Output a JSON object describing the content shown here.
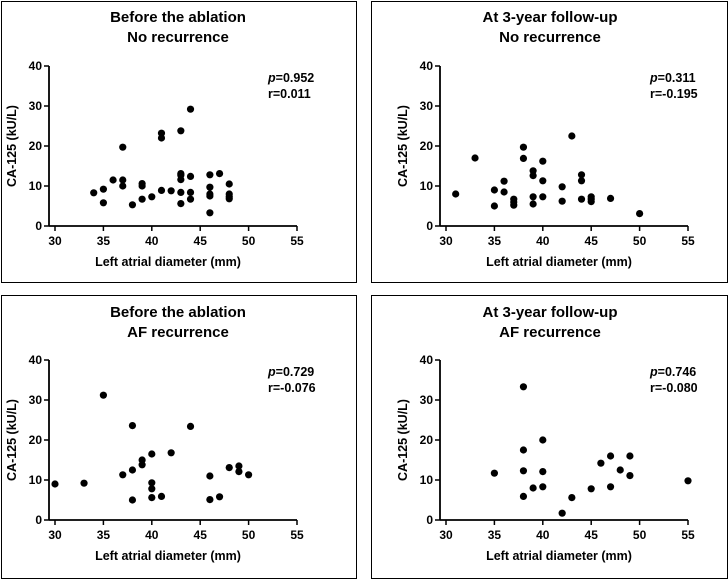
{
  "chart_data": [
    {
      "type": "scatter",
      "title": [
        "Before the ablation",
        "No recurrence"
      ],
      "xlabel": "Left atrial diameter (mm)",
      "ylabel": "CA-125 (kU/L)",
      "xlim": [
        30,
        55
      ],
      "ylim": [
        0,
        40
      ],
      "xticks": [
        "30",
        "35",
        "40",
        "45",
        "50",
        "55"
      ],
      "yticks": [
        "0",
        "10",
        "20",
        "30",
        "40"
      ],
      "stats": {
        "p_label": "p",
        "p_value": "=0.952",
        "r": "r=0.011"
      },
      "points": [
        [
          34,
          8.3
        ],
        [
          35,
          9.2
        ],
        [
          35,
          5.8
        ],
        [
          36,
          11.5
        ],
        [
          37,
          19.7
        ],
        [
          37,
          11.5
        ],
        [
          37,
          10
        ],
        [
          38,
          5.3
        ],
        [
          39,
          10.6
        ],
        [
          39,
          10
        ],
        [
          39,
          6.7
        ],
        [
          40,
          7.3
        ],
        [
          41,
          23.2
        ],
        [
          41,
          22
        ],
        [
          41,
          8.9
        ],
        [
          42,
          8.8
        ],
        [
          43,
          23.8
        ],
        [
          43,
          13.1
        ],
        [
          43,
          12.7
        ],
        [
          43,
          11.6
        ],
        [
          43,
          8.4
        ],
        [
          43,
          5.6
        ],
        [
          44,
          29.2
        ],
        [
          44,
          12.4
        ],
        [
          44,
          8.4
        ],
        [
          44,
          6.7
        ],
        [
          46,
          12.8
        ],
        [
          46,
          9.7
        ],
        [
          46,
          8
        ],
        [
          46,
          7.5
        ],
        [
          46,
          3.3
        ],
        [
          47,
          13.1
        ],
        [
          48,
          10.5
        ],
        [
          48,
          8
        ],
        [
          48,
          7.3
        ],
        [
          48,
          6.8
        ]
      ]
    },
    {
      "type": "scatter",
      "title": [
        "At 3-year follow-up",
        "No recurrence"
      ],
      "xlabel": "Left atrial diameter (mm)",
      "ylabel": "CA-125 (kU/L)",
      "xlim": [
        30,
        55
      ],
      "ylim": [
        0,
        40
      ],
      "xticks": [
        "30",
        "35",
        "40",
        "45",
        "50",
        "55"
      ],
      "yticks": [
        "0",
        "10",
        "20",
        "30",
        "40"
      ],
      "stats": {
        "p_label": "p",
        "p_value": "=0.311",
        "r": "r=-0.195"
      },
      "points": [
        [
          31,
          8
        ],
        [
          33,
          17
        ],
        [
          35,
          9
        ],
        [
          35,
          5
        ],
        [
          36,
          11.2
        ],
        [
          36,
          8.5
        ],
        [
          37,
          6.7
        ],
        [
          37,
          6
        ],
        [
          37,
          5.2
        ],
        [
          38,
          19.7
        ],
        [
          38,
          16.9
        ],
        [
          39,
          13.8
        ],
        [
          39,
          12.6
        ],
        [
          39,
          7.3
        ],
        [
          39,
          5.5
        ],
        [
          40,
          16.2
        ],
        [
          40,
          11.3
        ],
        [
          40,
          7.3
        ],
        [
          42,
          9.8
        ],
        [
          42,
          6.2
        ],
        [
          43,
          22.5
        ],
        [
          44,
          12.8
        ],
        [
          44,
          11.3
        ],
        [
          44,
          6.7
        ],
        [
          45,
          7.3
        ],
        [
          45,
          6.7
        ],
        [
          45,
          6.1
        ],
        [
          47,
          6.9
        ],
        [
          50,
          3.1
        ]
      ]
    },
    {
      "type": "scatter",
      "title": [
        "Before the ablation",
        "AF recurrence"
      ],
      "xlabel": "Left atrial diameter (mm)",
      "ylabel": "CA-125 (kU/L)",
      "xlim": [
        30,
        55
      ],
      "ylim": [
        0,
        40
      ],
      "xticks": [
        "30",
        "35",
        "40",
        "45",
        "50",
        "55"
      ],
      "yticks": [
        "0",
        "10",
        "20",
        "30",
        "40"
      ],
      "stats": {
        "p_label": "p",
        "p_value": "=0.729",
        "r": "r=-0.076"
      },
      "points": [
        [
          30,
          9
        ],
        [
          33,
          9.2
        ],
        [
          35,
          31.2
        ],
        [
          37,
          11.3
        ],
        [
          38,
          23.6
        ],
        [
          38,
          12.5
        ],
        [
          38,
          5
        ],
        [
          39,
          15
        ],
        [
          39,
          13.8
        ],
        [
          40,
          16.5
        ],
        [
          40,
          9.3
        ],
        [
          40,
          7.8
        ],
        [
          40,
          5.6
        ],
        [
          41,
          5.9
        ],
        [
          42,
          16.8
        ],
        [
          44,
          23.4
        ],
        [
          46,
          11
        ],
        [
          46,
          5.1
        ],
        [
          47,
          5.8
        ],
        [
          48,
          13.1
        ],
        [
          49,
          13.5
        ],
        [
          49,
          12.1
        ],
        [
          50,
          11.3
        ]
      ]
    },
    {
      "type": "scatter",
      "title": [
        "At 3-year follow-up",
        "AF recurrence"
      ],
      "xlabel": "Left atrial diameter (mm)",
      "ylabel": "CA-125 (kU/L)",
      "xlim": [
        30,
        55
      ],
      "ylim": [
        0,
        40
      ],
      "xticks": [
        "30",
        "35",
        "40",
        "45",
        "50",
        "55"
      ],
      "yticks": [
        "0",
        "10",
        "20",
        "30",
        "40"
      ],
      "stats": {
        "p_label": "p",
        "p_value": "=0.746",
        "r": "r=-0.080"
      },
      "points": [
        [
          35,
          11.7
        ],
        [
          38,
          33.3
        ],
        [
          38,
          17.5
        ],
        [
          38,
          12.3
        ],
        [
          38,
          5.9
        ],
        [
          39,
          8
        ],
        [
          40,
          20
        ],
        [
          40,
          12.1
        ],
        [
          40,
          8.3
        ],
        [
          42,
          1.7
        ],
        [
          43,
          5.6
        ],
        [
          45,
          7.8
        ],
        [
          46,
          14.2
        ],
        [
          47,
          16
        ],
        [
          47,
          8.3
        ],
        [
          48,
          12.5
        ],
        [
          49,
          16
        ],
        [
          49,
          11.1
        ],
        [
          55,
          9.8
        ]
      ]
    }
  ]
}
